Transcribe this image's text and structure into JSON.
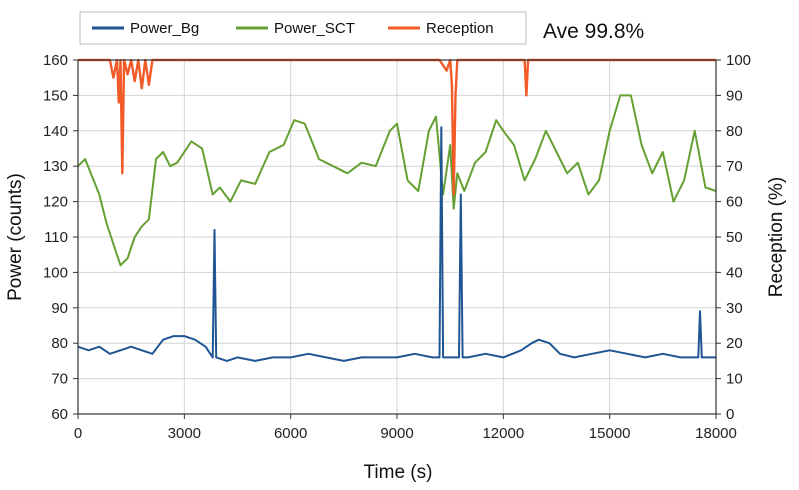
{
  "chart_data": {
    "type": "line",
    "x_label": "Time (s)",
    "y_label_left": "Power (counts)",
    "y_label_right": "Reception (%)",
    "annotation": "Ave 99.8%",
    "x_range": [
      0,
      18000
    ],
    "y_left_range": [
      60,
      160
    ],
    "y_right_range": [
      0,
      100
    ],
    "x_ticks": [
      0,
      3000,
      6000,
      9000,
      12000,
      15000,
      18000
    ],
    "y_left_ticks": [
      60,
      70,
      80,
      90,
      100,
      110,
      120,
      130,
      140,
      150,
      160
    ],
    "y_right_ticks": [
      0,
      10,
      20,
      30,
      40,
      50,
      60,
      70,
      80,
      90,
      100
    ],
    "grid": true,
    "legend_position": "top-left",
    "series": [
      {
        "name": "Power_Bg",
        "color": "#1f5592",
        "axis": "left",
        "x": [
          0,
          300,
          600,
          900,
          1200,
          1500,
          1800,
          2100,
          2400,
          2700,
          3000,
          3300,
          3600,
          3800,
          3850,
          3900,
          4200,
          4500,
          5000,
          5500,
          6000,
          6500,
          7000,
          7500,
          8000,
          8500,
          9000,
          9500,
          10000,
          10200,
          10250,
          10300,
          10500,
          10750,
          10800,
          10850,
          11000,
          11500,
          12000,
          12500,
          12800,
          13000,
          13300,
          13600,
          14000,
          14500,
          15000,
          15500,
          16000,
          16500,
          17000,
          17500,
          17550,
          17600,
          17700,
          18000
        ],
        "y": [
          79,
          78,
          79,
          77,
          78,
          79,
          78,
          77,
          81,
          82,
          82,
          81,
          79,
          76,
          112,
          76,
          75,
          76,
          75,
          76,
          76,
          77,
          76,
          75,
          76,
          76,
          76,
          77,
          76,
          76,
          141,
          76,
          76,
          76,
          122,
          76,
          76,
          77,
          76,
          78,
          80,
          81,
          80,
          77,
          76,
          77,
          78,
          77,
          76,
          77,
          76,
          76,
          89,
          76,
          76,
          76
        ]
      },
      {
        "name": "Power_SCT",
        "color": "#65a032",
        "axis": "left",
        "x": [
          0,
          200,
          400,
          600,
          800,
          1000,
          1200,
          1400,
          1600,
          1800,
          2000,
          2200,
          2400,
          2600,
          2800,
          3000,
          3200,
          3500,
          3800,
          4000,
          4300,
          4600,
          5000,
          5400,
          5800,
          6100,
          6400,
          6800,
          7200,
          7600,
          8000,
          8400,
          8800,
          9000,
          9300,
          9600,
          9900,
          10100,
          10300,
          10500,
          10600,
          10700,
          10900,
          11200,
          11500,
          11800,
          12000,
          12300,
          12600,
          12900,
          13200,
          13500,
          13800,
          14100,
          14400,
          14700,
          15000,
          15300,
          15600,
          15900,
          16200,
          16500,
          16800,
          17100,
          17400,
          17700,
          18000
        ],
        "y": [
          130,
          132,
          127,
          122,
          114,
          108,
          102,
          104,
          110,
          113,
          115,
          132,
          134,
          130,
          131,
          134,
          137,
          135,
          122,
          124,
          120,
          126,
          125,
          134,
          136,
          143,
          142,
          132,
          130,
          128,
          131,
          130,
          140,
          142,
          126,
          123,
          140,
          144,
          122,
          136,
          118,
          128,
          123,
          131,
          134,
          143,
          140,
          136,
          126,
          132,
          140,
          134,
          128,
          131,
          122,
          126,
          140,
          150,
          150,
          136,
          128,
          134,
          120,
          126,
          140,
          124,
          123
        ]
      },
      {
        "name": "Reception",
        "color": "#f25a28",
        "axis": "right",
        "x": [
          0,
          900,
          1000,
          1100,
          1150,
          1200,
          1250,
          1300,
          1400,
          1500,
          1600,
          1700,
          1800,
          1900,
          2000,
          2100,
          2200,
          10000,
          10200,
          10400,
          10500,
          10550,
          10600,
          10650,
          10700,
          10800,
          12600,
          12650,
          12700,
          12750,
          18000
        ],
        "y": [
          100,
          100,
          95,
          100,
          88,
          100,
          68,
          100,
          96,
          100,
          94,
          100,
          92,
          100,
          93,
          100,
          100,
          100,
          100,
          97,
          100,
          93,
          62,
          90,
          100,
          100,
          100,
          90,
          100,
          100,
          100
        ]
      }
    ]
  }
}
